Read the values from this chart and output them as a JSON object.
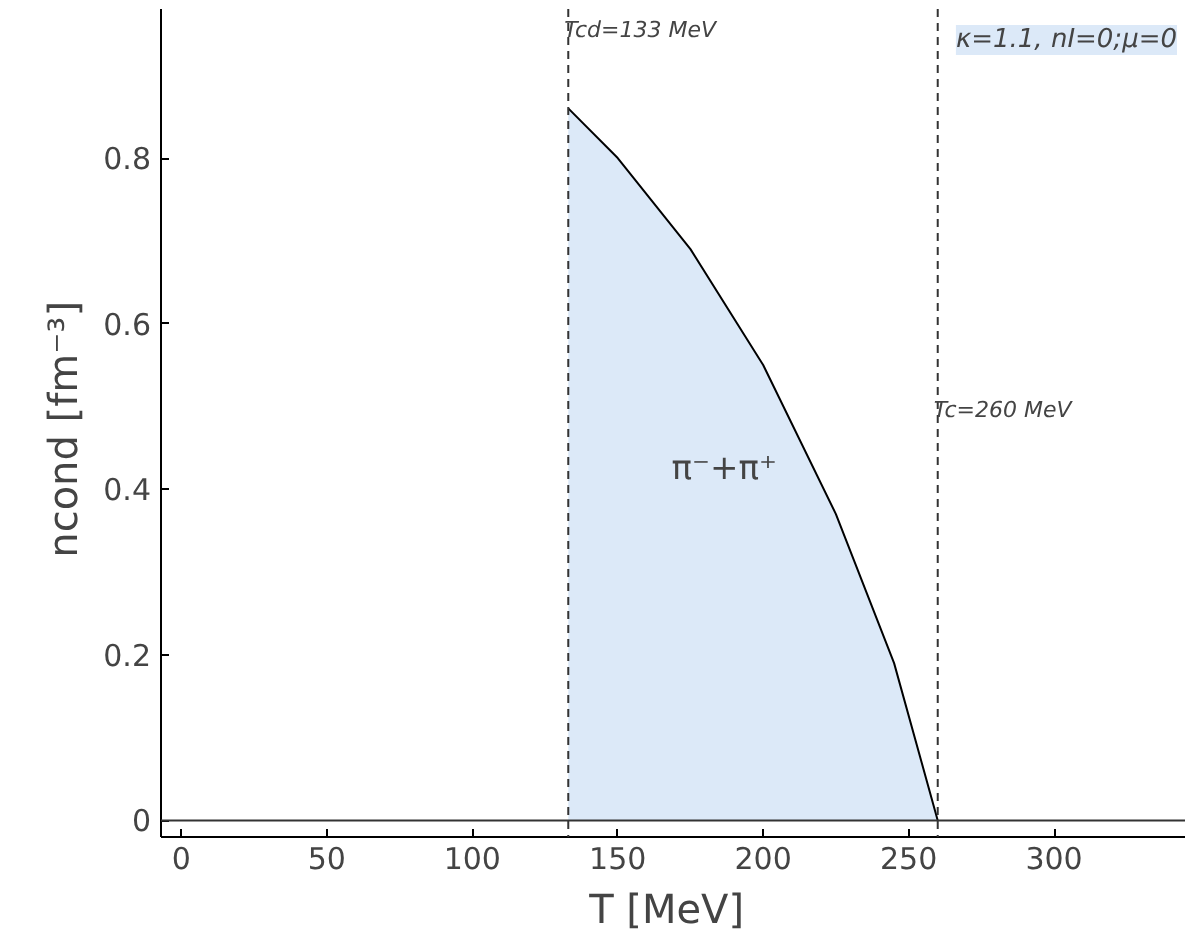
{
  "chart_data": {
    "type": "area",
    "xlabel": "T  [MeV]",
    "ylabel": "ncond  [fm⁻³]",
    "x": [
      133,
      150,
      175,
      200,
      225,
      245,
      260
    ],
    "series": [
      {
        "color": "#dce9f8",
        "values": [
          0.86,
          0.8,
          0.69,
          0.55,
          0.37,
          0.19,
          0
        ]
      }
    ],
    "xlim": [
      -7,
      345
    ],
    "ylim": [
      -0.02,
      0.98
    ],
    "xticks": [
      0,
      50,
      100,
      150,
      200,
      250,
      300
    ],
    "yticks": [
      0,
      0.2,
      0.4,
      0.6,
      0.8
    ],
    "ref_lines": [
      {
        "axis": "x",
        "value": 133,
        "label": "Tcd=133 MeV",
        "line_style": "dashed"
      },
      {
        "axis": "x",
        "value": 260,
        "label": "Tc=260 MeV",
        "line_style": "dashed"
      },
      {
        "axis": "y",
        "value": 0,
        "line_style": "solid"
      }
    ],
    "annotations": [
      "π⁻+π⁺",
      "κ=1.1, nI=0;μ=0"
    ],
    "grid": false
  }
}
